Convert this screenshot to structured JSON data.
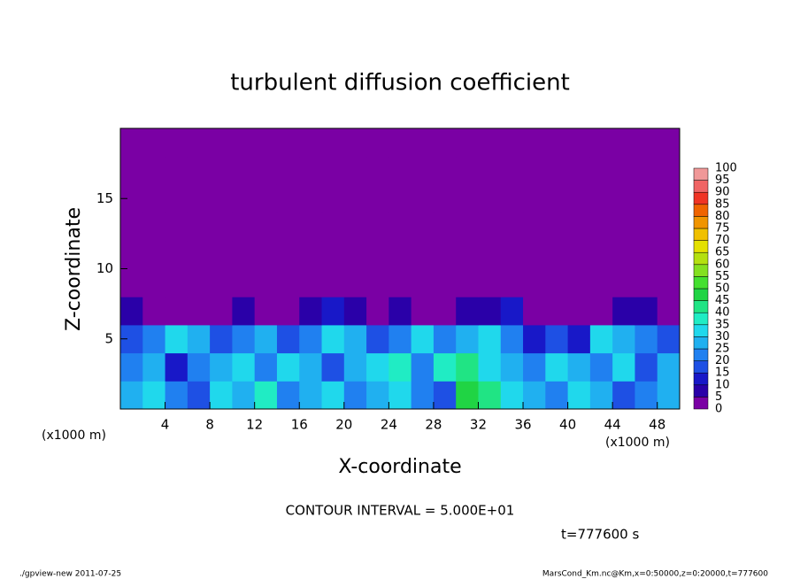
{
  "chart_data": {
    "type": "heatmap",
    "title": "turbulent diffusion coefficient",
    "x_label": "X-coordinate",
    "y_label": "Z-coordinate",
    "x_unit_label": "(x1000 m)",
    "y_unit_label": "(x1000 m)",
    "contour_note": "CONTOUR INTERVAL = 5.000E+01",
    "time_note": "t=777600 s",
    "footer_left": "./gpview-new  2011-07-25",
    "footer_right": "MarsCond_Km.nc@Km,x=0:50000,z=0:20000,t=777600",
    "x": [
      1,
      3,
      5,
      7,
      9,
      11,
      13,
      15,
      17,
      19,
      21,
      23,
      25,
      27,
      29,
      31,
      33,
      35,
      37,
      39,
      41,
      43,
      45,
      47,
      49
    ],
    "y": [
      1,
      3,
      5,
      7,
      9,
      11,
      13,
      15,
      17,
      19
    ],
    "z": [
      [
        25,
        30,
        20,
        15,
        30,
        25,
        35,
        20,
        25,
        30,
        20,
        25,
        30,
        20,
        15,
        45,
        40,
        30,
        25,
        20,
        30,
        25,
        15,
        20,
        25
      ],
      [
        20,
        25,
        10,
        20,
        25,
        30,
        20,
        30,
        25,
        15,
        25,
        30,
        35,
        20,
        35,
        40,
        30,
        25,
        20,
        30,
        25,
        20,
        30,
        15,
        25
      ],
      [
        15,
        20,
        30,
        25,
        15,
        20,
        25,
        15,
        20,
        30,
        25,
        15,
        20,
        30,
        20,
        25,
        30,
        20,
        10,
        15,
        10,
        30,
        25,
        20,
        15
      ],
      [
        5,
        0,
        0,
        0,
        0,
        5,
        0,
        0,
        5,
        10,
        5,
        0,
        5,
        0,
        0,
        5,
        5,
        10,
        0,
        0,
        0,
        0,
        5,
        5,
        0
      ],
      [
        0,
        0,
        0,
        0,
        0,
        0,
        0,
        0,
        0,
        0,
        0,
        0,
        0,
        0,
        0,
        0,
        0,
        0,
        0,
        0,
        0,
        0,
        0,
        0,
        0
      ],
      [
        0,
        0,
        0,
        0,
        0,
        0,
        0,
        0,
        0,
        0,
        0,
        0,
        0,
        0,
        0,
        0,
        0,
        0,
        0,
        0,
        0,
        0,
        0,
        0,
        0
      ],
      [
        0,
        0,
        0,
        0,
        0,
        0,
        0,
        0,
        0,
        0,
        0,
        0,
        0,
        0,
        0,
        0,
        0,
        0,
        0,
        0,
        0,
        0,
        0,
        0,
        0
      ],
      [
        0,
        0,
        0,
        0,
        0,
        0,
        0,
        0,
        0,
        0,
        0,
        0,
        0,
        0,
        0,
        0,
        0,
        0,
        0,
        0,
        0,
        0,
        0,
        0,
        0
      ],
      [
        0,
        0,
        0,
        0,
        0,
        0,
        0,
        0,
        0,
        0,
        0,
        0,
        0,
        0,
        0,
        0,
        0,
        0,
        0,
        0,
        0,
        0,
        0,
        0,
        0
      ],
      [
        0,
        0,
        0,
        0,
        0,
        0,
        0,
        0,
        0,
        0,
        0,
        0,
        0,
        0,
        0,
        0,
        0,
        0,
        0,
        0,
        0,
        0,
        0,
        0,
        0
      ]
    ],
    "xlim": [
      0,
      50
    ],
    "xticks": [
      4,
      8,
      12,
      16,
      20,
      24,
      28,
      32,
      36,
      40,
      44,
      48
    ],
    "ylim": [
      0,
      20
    ],
    "yticks": [
      5,
      10,
      15
    ],
    "levels": [
      0,
      5,
      10,
      15,
      20,
      25,
      30,
      35,
      40,
      45,
      50,
      55,
      60,
      65,
      70,
      75,
      80,
      85,
      90,
      95,
      100
    ],
    "colors": [
      "#7a00a4",
      "#2a00a8",
      "#1818c8",
      "#1e50e4",
      "#2080f0",
      "#20b0f0",
      "#20d8ec",
      "#20ecc4",
      "#20e484",
      "#20d444",
      "#44e030",
      "#84e020",
      "#b4e010",
      "#e4e000",
      "#f0c000",
      "#f09400",
      "#f06400",
      "#f03424",
      "#f06464",
      "#f09898"
    ]
  }
}
